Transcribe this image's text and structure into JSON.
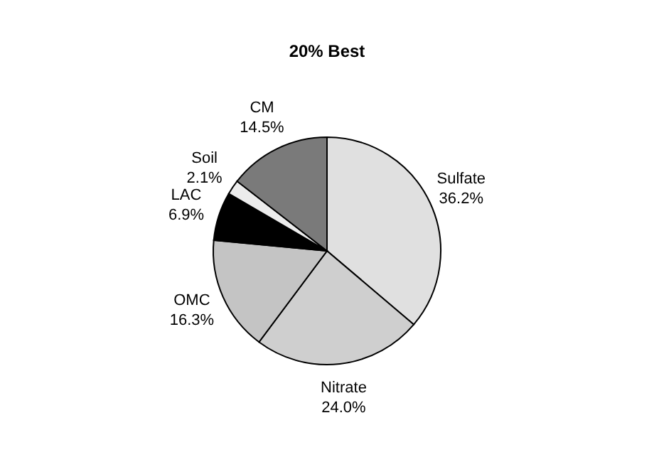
{
  "chart_data": {
    "type": "pie",
    "title": "20% Best",
    "categories": [
      "Sulfate",
      "Nitrate",
      "OMC",
      "LAC",
      "Soil",
      "CM"
    ],
    "values": [
      36.2,
      24.0,
      16.3,
      6.9,
      2.1,
      14.5
    ],
    "value_labels": [
      "36.2%",
      "24.0%",
      "16.3%",
      "6.9%",
      "2.1%",
      "14.5%"
    ],
    "colors": [
      "#e0e0e0",
      "#cfcfcf",
      "#c4c4c4",
      "#000000",
      "#ececec",
      "#7a7a7a"
    ],
    "legend": false
  }
}
